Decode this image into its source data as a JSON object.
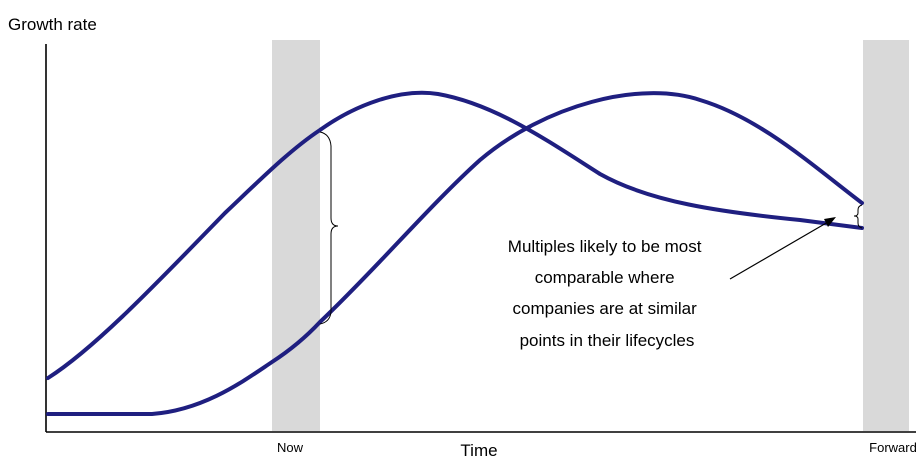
{
  "chart_data": {
    "type": "line",
    "ylabel": "Growth rate",
    "xlabel": "Time",
    "x_markers": [
      "Now",
      "Forward"
    ],
    "series": [
      {
        "values": []
      },
      {
        "values": []
      }
    ],
    "annotation": {
      "lines": [
        "Multiples likely to be most",
        "comparable where",
        "companies are at similar",
        "points in their lifecycles"
      ]
    },
    "colors": {
      "curve": "#1f1f80",
      "band": "#d9d9d9",
      "axis": "#000000"
    }
  }
}
